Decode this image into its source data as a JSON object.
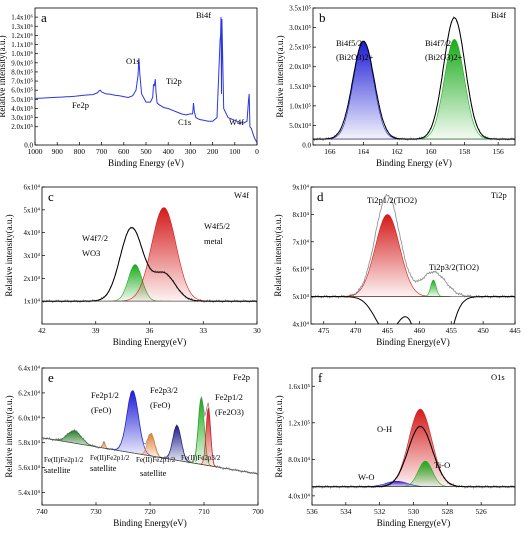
{
  "chart_data": [
    {
      "panel": "a",
      "type": "line",
      "title": "",
      "xlabel": "Binding Energy (eV)",
      "ylabel": "Relative intensity(a.u.)",
      "xlim": [
        1000,
        0
      ],
      "ylim": [
        0,
        1500000
      ],
      "xticks": [
        "1000",
        "900",
        "800",
        "700",
        "600",
        "500",
        "400",
        "300",
        "200",
        "100",
        "0"
      ],
      "yticks": [
        "0.0",
        "2.0x10⁵",
        "3.0x10⁵",
        "4.0x10⁵",
        "5.0x10⁵",
        "6.0x10⁵",
        "7.0x10⁵",
        "8.0x10⁵",
        "9.0x10⁵",
        "1.0x10⁶",
        "1.1x10⁶",
        "1.2x10⁶",
        "1.3x10⁶",
        "1.4x10⁶"
      ],
      "annotations": [
        "Bi4f",
        "O1s",
        "Ti2p",
        "Fe2p",
        "C1s",
        "W4f"
      ],
      "series": [
        {
          "color": "#2b36e6",
          "x": [
            1000,
            980,
            960,
            940,
            920,
            900,
            880,
            860,
            840,
            820,
            800,
            780,
            760,
            740,
            720,
            712,
            706,
            700,
            680,
            660,
            640,
            620,
            600,
            580,
            560,
            545,
            536,
            532,
            528,
            520,
            500,
            480,
            470,
            466,
            462,
            458,
            455,
            450,
            440,
            420,
            400,
            380,
            360,
            340,
            320,
            300,
            290,
            286,
            282,
            275,
            260,
            250,
            240,
            220,
            200,
            180,
            166,
            164,
            162,
            160,
            158,
            150,
            130,
            110,
            90,
            80,
            60,
            45,
            38,
            35,
            32,
            25,
            15,
            8,
            3,
            0
          ],
          "y": [
            510000,
            512000,
            515000,
            518000,
            520000,
            522000,
            525000,
            528000,
            530000,
            533000,
            540000,
            545000,
            548000,
            552000,
            570000,
            590000,
            600000,
            580000,
            560000,
            555000,
            545000,
            540000,
            530000,
            520000,
            540000,
            600000,
            760000,
            950000,
            780000,
            560000,
            470000,
            470000,
            520000,
            660000,
            650000,
            720000,
            580000,
            460000,
            440000,
            410000,
            400000,
            380000,
            360000,
            340000,
            330000,
            340000,
            340000,
            460000,
            360000,
            300000,
            280000,
            275000,
            270000,
            260000,
            260000,
            300000,
            1150000,
            1200000,
            1400000,
            560000,
            1380000,
            400000,
            300000,
            280000,
            260000,
            250000,
            240000,
            260000,
            500000,
            560000,
            200000,
            180000,
            100000,
            60000,
            40000,
            20000
          ]
        }
      ]
    },
    {
      "panel": "b",
      "type": "line",
      "title": "",
      "xlabel": "Binding Energy (eV)",
      "ylabel": "Relative intensity(a.u.)",
      "xlim": [
        167,
        155
      ],
      "ylim": [
        0,
        350000
      ],
      "xticks": [
        "166",
        "164",
        "162",
        "160",
        "158",
        "156"
      ],
      "yticks": [
        "0.0",
        "5.0x10⁴",
        "1.0x10⁵",
        "1.5x10⁵",
        "2.0x10⁵",
        "2.5x10⁵",
        "3.0x10⁵",
        "3.5x10⁵"
      ],
      "annotations": [
        "Bi4f",
        "Bi4f5/2",
        "(Bi2O3)2+",
        "Bi4f7/2",
        "(Bi2O3)2+"
      ],
      "peaks": [
        {
          "label": "Bi4f5/2",
          "center": 164.0,
          "height": 250000,
          "fwhm": 1.4,
          "color": "#1c1cd6"
        },
        {
          "label": "Bi4f7/2",
          "center": 158.6,
          "height": 255000,
          "fwhm": 1.4,
          "color": "#1aaa1a"
        }
      ],
      "background": 15000,
      "envelope": {
        "peaks": [
          [
            164.0,
            265000
          ],
          [
            158.6,
            325000
          ]
        ],
        "fwhm": 1.5
      }
    },
    {
      "panel": "c",
      "type": "line",
      "title": "",
      "xlabel": "Binding Energy(eV)",
      "ylabel": "Relative intensity(a.u.)",
      "xlim": [
        42,
        30
      ],
      "ylim": [
        0,
        60000
      ],
      "xticks": [
        "42",
        "39",
        "36",
        "33",
        "30"
      ],
      "yticks": [
        "1x10⁴",
        "2x10⁴",
        "3x10⁴",
        "4x10⁴",
        "5x10⁴",
        "6x10⁴"
      ],
      "annotations": [
        "W4f",
        "W4f7/2",
        "WO3",
        "W4f5/2",
        "metal"
      ],
      "peaks": [
        {
          "label": "W4f7/2",
          "center": 36.8,
          "height": 16000,
          "fwhm": 0.9,
          "color": "#1aaa1a"
        },
        {
          "label": "W4f5/2",
          "center": 35.2,
          "height": 41000,
          "fwhm": 1.6,
          "color": "#d41a1a"
        }
      ],
      "background": 10000,
      "envelope": {
        "peaks": [
          [
            37.0,
            42000
          ],
          [
            35.2,
            22000
          ]
        ],
        "fwhm": 1.5
      }
    },
    {
      "panel": "d",
      "type": "line",
      "title": "",
      "xlabel": "Binding Energy(eV)",
      "ylabel": "Relative intensity(a.u.)",
      "xlim": [
        477,
        445
      ],
      "ylim": [
        40000,
        90000
      ],
      "xticks": [
        "475",
        "470",
        "465",
        "460",
        "455",
        "450",
        "445"
      ],
      "yticks": [
        "4x10⁴",
        "5x10⁴",
        "6x10⁴",
        "7x10⁴",
        "8x10⁴",
        "9x10⁴"
      ],
      "annotations": [
        "Ti2p",
        "Ti2p1/2(TiO2)",
        "Ti2p3/2(TiO2)"
      ],
      "peaks": [
        {
          "label": "Ti2p1/2(TiO2)",
          "center": 465.0,
          "height": 30000,
          "fwhm": 4.5,
          "color": "#d41a1a"
        },
        {
          "label": "Ti2p3/2(TiO2)",
          "center": 457.8,
          "height": 6000,
          "fwhm": 1.0,
          "color": "#1aaa1a"
        }
      ],
      "background": 50000,
      "envelope": {
        "peaks": [
          [
            465.0,
            37000
          ],
          [
            457.8,
            9000
          ]
        ],
        "fwhm": 4.5
      }
    },
    {
      "panel": "e",
      "type": "line",
      "title": "",
      "xlabel": "Binding Energy(eV)",
      "ylabel": "Relative intensity(a.u.)",
      "xlim": [
        740,
        700
      ],
      "ylim": [
        53000,
        64000
      ],
      "xticks": [
        "740",
        "730",
        "720",
        "710",
        "700"
      ],
      "yticks": [
        "5.4x10⁴",
        "5.6x10⁴",
        "5.8x10⁴",
        "6.0x10⁴",
        "6.2x10⁴",
        "6.4x10⁴"
      ],
      "annotations": [
        "Fe2p",
        "Fe2p1/2",
        "(FeO)",
        "Fe2p3/2",
        "(FeO)",
        "Fe2p1/2",
        "(Fe2O3)",
        "Fe(II)Fe2p1/2",
        "satellite",
        "Fe(II)Fe2p1/2",
        "satellite",
        "Fe(II)Fe2p1/2",
        "satellite",
        "Fe(II)Fe2p3/2"
      ],
      "peaks": [
        {
          "label": "Fe(II)Fe2p1/2 satellite",
          "center": 734.0,
          "height": 1000,
          "fwhm": 3.0,
          "color": "#2e7d2e"
        },
        {
          "label": "Fe(II)Fe2p1/2 satellite",
          "center": 728.5,
          "height": 500,
          "fwhm": 0.5,
          "color": "#e08030"
        },
        {
          "label": "Fe2p1/2 (FeO)",
          "center": 723.2,
          "height": 5000,
          "fwhm": 2.5,
          "color": "#1c1cd6"
        },
        {
          "label": "Fe(II)Fe2p1/2 satellite",
          "center": 719.8,
          "height": 1800,
          "fwhm": 1.5,
          "color": "#e08030"
        },
        {
          "label": "Fe(II)Fe2p3/2",
          "center": 715.0,
          "height": 2800,
          "fwhm": 1.8,
          "color": "#1c1c8a"
        },
        {
          "label": "Fe2p3/2 (FeO)",
          "center": 710.5,
          "height": 5300,
          "fwhm": 1.3,
          "color": "#1aaa1a"
        },
        {
          "label": "Fe2p1/2 (Fe2O3)",
          "center": 709.2,
          "height": 4600,
          "fwhm": 1.0,
          "color": "#d41a1a"
        }
      ],
      "background_start": 58400,
      "background_end": 55500
    },
    {
      "panel": "f",
      "type": "line",
      "title": "",
      "xlabel": "Binding Energy(eV)",
      "ylabel": "Relative intensity(a.u.)",
      "xlim": [
        536,
        524
      ],
      "ylim": [
        30000,
        180000
      ],
      "xticks": [
        "536",
        "534",
        "532",
        "530",
        "528",
        "526"
      ],
      "yticks": [
        "4.0x10⁴",
        "8.0x10⁴",
        "1.2x10⁵",
        "1.6x10⁵"
      ],
      "annotations": [
        "O1s",
        "O-H",
        "W-O",
        "Ti-O"
      ],
      "peaks": [
        {
          "label": "W-O",
          "center": 531.0,
          "height": 6000,
          "fwhm": 1.5,
          "color": "#1c1cd6"
        },
        {
          "label": "O-H",
          "center": 529.6,
          "height": 85000,
          "fwhm": 1.6,
          "color": "#d41a1a"
        },
        {
          "label": "Ti-O",
          "center": 529.3,
          "height": 28000,
          "fwhm": 1.0,
          "color": "#1aaa1a"
        }
      ],
      "background": 50000,
      "envelope": {
        "peaks": [
          [
            529.6,
            116000
          ]
        ],
        "fwhm": 1.7
      }
    }
  ]
}
